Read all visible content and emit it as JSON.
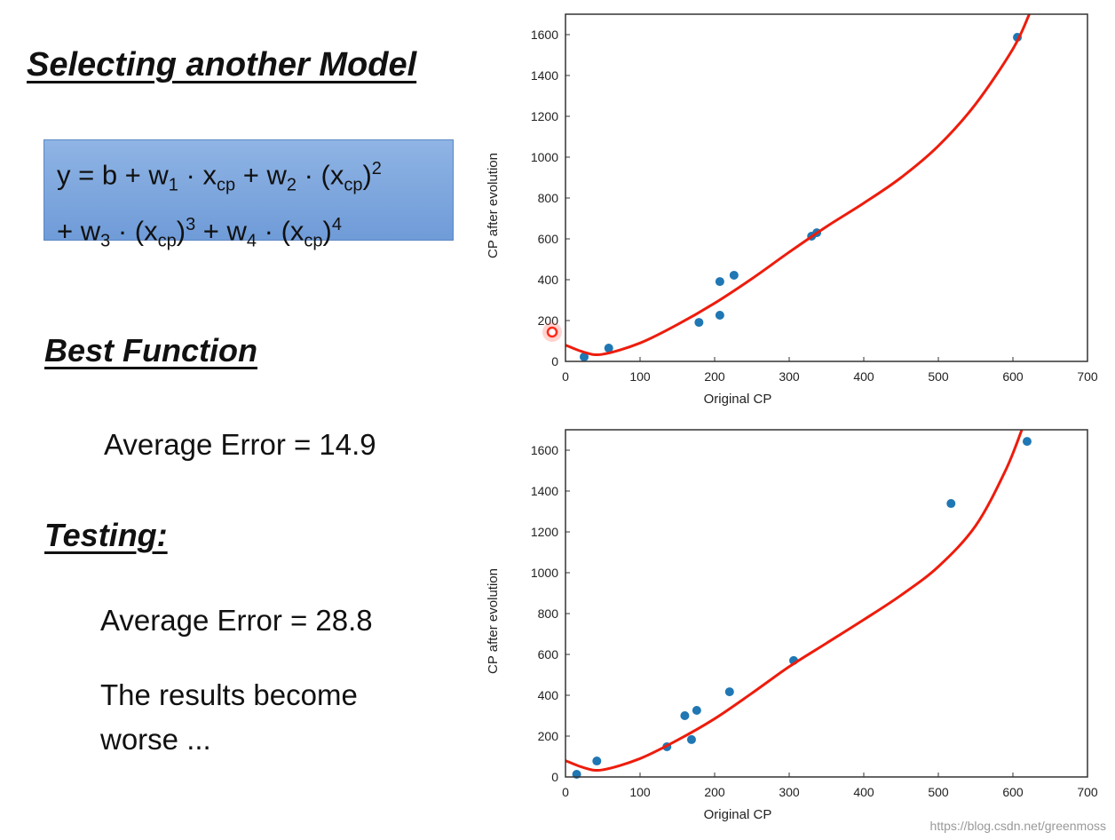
{
  "slide": {
    "title": "Selecting another Model",
    "formula": {
      "line1": [
        "y = b + w",
        "1",
        " · x",
        "cp",
        " + w",
        "2",
        " · (x",
        "cp",
        ")",
        "2"
      ],
      "line2": [
        "+ w",
        "3",
        " · (x",
        "cp",
        ")",
        "3",
        " + w",
        "4",
        " · (x",
        "cp",
        ")",
        "4"
      ]
    },
    "best_function_heading": "Best Function",
    "train_error": "Average Error = 14.9",
    "testing_heading": "Testing:",
    "test_error": "Average Error = 28.8",
    "conclusion_line1": "The results become",
    "conclusion_line2": "worse ...",
    "watermark": "https://blog.csdn.net/greenmoss"
  },
  "colors": {
    "points": "#1f77b4",
    "curve": "#ee1c0c",
    "cursor": "#ff2a1a"
  },
  "chart_data": [
    {
      "type": "scatter",
      "xlabel": "Original CP",
      "ylabel": "CP after evolution",
      "xlim": [
        0,
        700
      ],
      "ylim": [
        0,
        1700
      ],
      "xticks": [
        0,
        100,
        200,
        300,
        400,
        500,
        600,
        700
      ],
      "yticks": [
        0,
        200,
        400,
        600,
        800,
        1000,
        1200,
        1400,
        1600
      ],
      "grid": false,
      "points": [
        [
          25,
          22
        ],
        [
          58,
          65
        ],
        [
          179,
          191
        ],
        [
          207,
          226
        ],
        [
          207,
          391
        ],
        [
          226,
          422
        ],
        [
          330,
          613
        ],
        [
          337,
          630
        ],
        [
          606,
          1587
        ]
      ],
      "fit_curve": [
        [
          0,
          80
        ],
        [
          25,
          45
        ],
        [
          50,
          35
        ],
        [
          100,
          90
        ],
        [
          150,
          180
        ],
        [
          200,
          285
        ],
        [
          250,
          405
        ],
        [
          300,
          535
        ],
        [
          350,
          660
        ],
        [
          400,
          775
        ],
        [
          450,
          900
        ],
        [
          500,
          1055
        ],
        [
          550,
          1260
        ],
        [
          600,
          1530
        ],
        [
          622,
          1700
        ]
      ]
    },
    {
      "type": "scatter",
      "xlabel": "Original CP",
      "ylabel": "CP after evolution",
      "xlim": [
        0,
        700
      ],
      "ylim": [
        0,
        1700
      ],
      "xticks": [
        0,
        100,
        200,
        300,
        400,
        500,
        600,
        700
      ],
      "yticks": [
        0,
        200,
        400,
        600,
        800,
        1000,
        1200,
        1400,
        1600
      ],
      "grid": false,
      "points": [
        [
          15,
          13
        ],
        [
          42,
          78
        ],
        [
          136,
          148
        ],
        [
          160,
          300
        ],
        [
          169,
          183
        ],
        [
          176,
          326
        ],
        [
          220,
          417
        ],
        [
          306,
          570
        ],
        [
          517,
          1339
        ],
        [
          619,
          1643
        ]
      ],
      "fit_curve": [
        [
          0,
          80
        ],
        [
          25,
          45
        ],
        [
          50,
          35
        ],
        [
          100,
          90
        ],
        [
          150,
          180
        ],
        [
          200,
          285
        ],
        [
          250,
          410
        ],
        [
          300,
          540
        ],
        [
          350,
          655
        ],
        [
          400,
          770
        ],
        [
          450,
          890
        ],
        [
          500,
          1030
        ],
        [
          550,
          1230
        ],
        [
          590,
          1500
        ],
        [
          612,
          1700
        ]
      ]
    }
  ]
}
